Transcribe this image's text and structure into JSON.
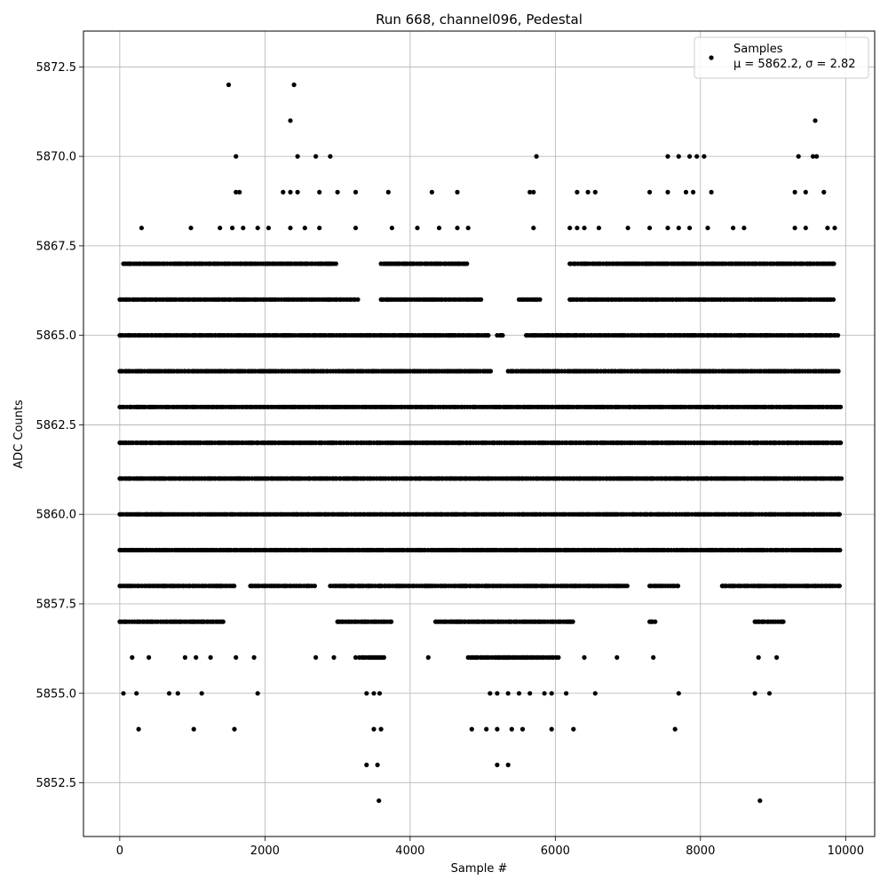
{
  "chart_data": {
    "type": "scatter",
    "title": "Run 668, channel096, Pedestal",
    "xlabel": "Sample #",
    "ylabel": "ADC Counts",
    "xlim": [
      -500,
      10400
    ],
    "ylim": [
      5851.0,
      5873.5
    ],
    "xticks": [
      0,
      2000,
      4000,
      6000,
      8000,
      10000
    ],
    "xtick_labels": [
      "0",
      "2000",
      "4000",
      "6000",
      "8000",
      "10000"
    ],
    "yticks": [
      5852.5,
      5855.0,
      5857.5,
      5860.0,
      5862.5,
      5865.0,
      5867.5,
      5870.0,
      5872.5
    ],
    "ytick_labels": [
      "5852.5",
      "5855.0",
      "5857.5",
      "5860.0",
      "5862.5",
      "5865.0",
      "5867.5",
      "5870.0",
      "5872.5"
    ],
    "grid": true,
    "legend": {
      "placement": "top-right",
      "marker_color": "#000000"
    },
    "series": [
      {
        "name": "Samples",
        "stats_label": "μ = 5862.2, σ = 2.82",
        "color": "#000000",
        "n_samples": 10000,
        "levels": [
          {
            "y": 5865,
            "ranges": [
              [
                0,
                5100
              ],
              [
                5200,
                5300
              ],
              [
                5600,
                9920
              ]
            ]
          },
          {
            "y": 5864,
            "ranges": [
              [
                0,
                5120
              ],
              [
                5350,
                9920
              ]
            ]
          },
          {
            "y": 5863,
            "ranges": [
              [
                0,
                9950
              ]
            ]
          },
          {
            "y": 5862,
            "ranges": [
              [
                0,
                9950
              ]
            ]
          },
          {
            "y": 5861,
            "ranges": [
              [
                0,
                9950
              ]
            ]
          },
          {
            "y": 5860,
            "ranges": [
              [
                0,
                9950
              ]
            ]
          },
          {
            "y": 5859,
            "ranges": [
              [
                0,
                9950
              ]
            ]
          },
          {
            "y": 5866,
            "ranges": [
              [
                0,
                3300
              ],
              [
                3600,
                5000
              ],
              [
                5500,
                5800
              ],
              [
                6200,
                9850
              ]
            ]
          },
          {
            "y": 5858,
            "ranges": [
              [
                0,
                1600
              ],
              [
                1800,
                2700
              ],
              [
                2900,
                7000
              ],
              [
                7300,
                7700
              ],
              [
                8300,
                9950
              ]
            ]
          },
          {
            "y": 5867,
            "ranges": [
              [
                50,
                3000
              ],
              [
                3600,
                4800
              ],
              [
                6200,
                9850
              ]
            ]
          },
          {
            "y": 5857,
            "ranges": [
              [
                0,
                1450
              ],
              [
                3000,
                3750
              ],
              [
                4350,
                6250
              ],
              [
                7300,
                7400
              ],
              [
                8750,
                9150
              ]
            ]
          },
          {
            "y": 5856,
            "ranges": [
              [
                3300,
                3650
              ],
              [
                4800,
                6050
              ]
            ]
          }
        ],
        "points": [
          [
            1500,
            5872
          ],
          [
            2400,
            5872
          ],
          [
            2350,
            5871
          ],
          [
            9580,
            5871
          ],
          [
            1600,
            5870
          ],
          [
            2450,
            5870
          ],
          [
            2700,
            5870
          ],
          [
            2900,
            5870
          ],
          [
            5740,
            5870
          ],
          [
            7550,
            5870
          ],
          [
            7700,
            5870
          ],
          [
            7850,
            5870
          ],
          [
            7950,
            5870
          ],
          [
            8050,
            5870
          ],
          [
            9350,
            5870
          ],
          [
            9550,
            5870
          ],
          [
            9600,
            5870
          ],
          [
            1600,
            5869
          ],
          [
            1650,
            5869
          ],
          [
            2250,
            5869
          ],
          [
            2350,
            5869
          ],
          [
            2450,
            5869
          ],
          [
            2750,
            5869
          ],
          [
            3000,
            5869
          ],
          [
            3250,
            5869
          ],
          [
            3700,
            5869
          ],
          [
            4300,
            5869
          ],
          [
            4650,
            5869
          ],
          [
            5650,
            5869
          ],
          [
            5700,
            5869
          ],
          [
            6300,
            5869
          ],
          [
            6450,
            5869
          ],
          [
            6550,
            5869
          ],
          [
            7300,
            5869
          ],
          [
            7550,
            5869
          ],
          [
            7800,
            5869
          ],
          [
            7900,
            5869
          ],
          [
            8150,
            5869
          ],
          [
            9300,
            5869
          ],
          [
            9450,
            5869
          ],
          [
            9700,
            5869
          ],
          [
            300,
            5868
          ],
          [
            980,
            5868
          ],
          [
            1380,
            5868
          ],
          [
            1550,
            5868
          ],
          [
            1700,
            5868
          ],
          [
            1900,
            5868
          ],
          [
            2050,
            5868
          ],
          [
            2350,
            5868
          ],
          [
            2550,
            5868
          ],
          [
            2750,
            5868
          ],
          [
            3250,
            5868
          ],
          [
            3750,
            5868
          ],
          [
            4100,
            5868
          ],
          [
            4400,
            5868
          ],
          [
            4650,
            5868
          ],
          [
            4800,
            5868
          ],
          [
            5700,
            5868
          ],
          [
            6200,
            5868
          ],
          [
            6300,
            5868
          ],
          [
            6400,
            5868
          ],
          [
            6600,
            5868
          ],
          [
            7000,
            5868
          ],
          [
            7300,
            5868
          ],
          [
            7550,
            5868
          ],
          [
            7700,
            5868
          ],
          [
            7850,
            5868
          ],
          [
            8100,
            5868
          ],
          [
            8450,
            5868
          ],
          [
            8600,
            5868
          ],
          [
            9300,
            5868
          ],
          [
            9450,
            5868
          ],
          [
            9750,
            5868
          ],
          [
            9850,
            5868
          ],
          [
            50,
            5855
          ],
          [
            230,
            5855
          ],
          [
            680,
            5855
          ],
          [
            800,
            5855
          ],
          [
            1130,
            5855
          ],
          [
            1900,
            5855
          ],
          [
            3400,
            5855
          ],
          [
            3500,
            5855
          ],
          [
            3580,
            5855
          ],
          [
            5100,
            5855
          ],
          [
            5200,
            5855
          ],
          [
            5350,
            5855
          ],
          [
            5500,
            5855
          ],
          [
            5650,
            5855
          ],
          [
            5850,
            5855
          ],
          [
            5950,
            5855
          ],
          [
            6150,
            5855
          ],
          [
            6550,
            5855
          ],
          [
            7700,
            5855
          ],
          [
            8750,
            5855
          ],
          [
            8950,
            5855
          ],
          [
            260,
            5854
          ],
          [
            1020,
            5854
          ],
          [
            1580,
            5854
          ],
          [
            3500,
            5854
          ],
          [
            3600,
            5854
          ],
          [
            4850,
            5854
          ],
          [
            5050,
            5854
          ],
          [
            5200,
            5854
          ],
          [
            5400,
            5854
          ],
          [
            5550,
            5854
          ],
          [
            5950,
            5854
          ],
          [
            6250,
            5854
          ],
          [
            7650,
            5854
          ],
          [
            3400,
            5853
          ],
          [
            3550,
            5853
          ],
          [
            5200,
            5853
          ],
          [
            5350,
            5853
          ],
          [
            3570,
            5852
          ],
          [
            8820,
            5852
          ],
          [
            170,
            5856
          ],
          [
            400,
            5856
          ],
          [
            900,
            5856
          ],
          [
            1050,
            5856
          ],
          [
            1250,
            5856
          ],
          [
            1600,
            5856
          ],
          [
            1850,
            5856
          ],
          [
            2700,
            5856
          ],
          [
            2950,
            5856
          ],
          [
            3250,
            5856
          ],
          [
            4250,
            5856
          ],
          [
            6400,
            5856
          ],
          [
            6850,
            5856
          ],
          [
            7350,
            5856
          ],
          [
            8800,
            5856
          ],
          [
            9050,
            5856
          ]
        ]
      }
    ]
  }
}
